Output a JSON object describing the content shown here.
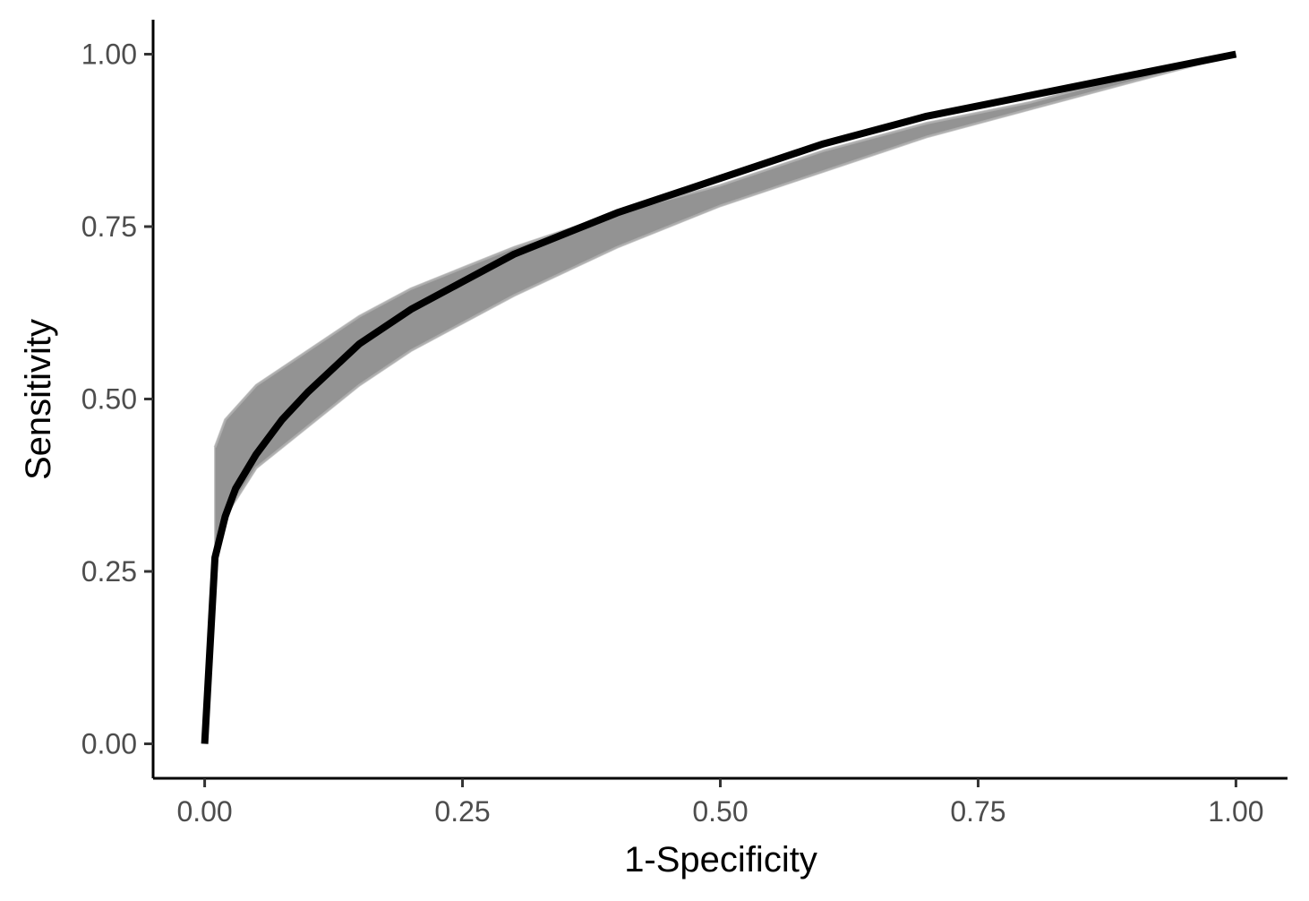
{
  "chart_data": {
    "type": "line",
    "title": "",
    "xlabel": "1-Specificity",
    "ylabel": "Sensitivity",
    "xlim": [
      -0.05,
      1.05
    ],
    "ylim": [
      -0.05,
      1.05
    ],
    "xticks": [
      0.0,
      0.25,
      0.5,
      0.75,
      1.0
    ],
    "yticks": [
      0.0,
      0.25,
      0.5,
      0.75,
      1.0
    ],
    "xtick_labels": [
      "0.00",
      "0.25",
      "0.50",
      "0.75",
      "1.00"
    ],
    "ytick_labels": [
      "0.00",
      "0.25",
      "0.50",
      "0.75",
      "1.00"
    ],
    "grid": false,
    "legend": "none",
    "series": [
      {
        "role": "band-upper",
        "color": "#808080",
        "x": [
          0.01,
          0.02,
          0.05,
          0.1,
          0.15,
          0.2,
          0.25,
          0.3,
          0.4,
          0.5,
          0.6,
          0.7,
          0.8,
          0.9,
          1.0
        ],
        "y": [
          0.43,
          0.47,
          0.52,
          0.57,
          0.62,
          0.66,
          0.69,
          0.72,
          0.77,
          0.81,
          0.86,
          0.9,
          0.93,
          0.97,
          1.0
        ]
      },
      {
        "role": "band-lower",
        "color": "#808080",
        "x": [
          0.01,
          0.02,
          0.05,
          0.1,
          0.15,
          0.2,
          0.25,
          0.3,
          0.4,
          0.5,
          0.6,
          0.7,
          0.8,
          0.9,
          1.0
        ],
        "y": [
          0.26,
          0.33,
          0.4,
          0.46,
          0.52,
          0.57,
          0.61,
          0.65,
          0.72,
          0.78,
          0.83,
          0.88,
          0.92,
          0.96,
          1.0
        ]
      },
      {
        "role": "main",
        "color": "#000000",
        "x": [
          0.0,
          0.01,
          0.02,
          0.03,
          0.05,
          0.075,
          0.1,
          0.15,
          0.2,
          0.25,
          0.3,
          0.4,
          0.5,
          0.6,
          0.7,
          0.8,
          0.9,
          1.0
        ],
        "y": [
          0.0,
          0.27,
          0.33,
          0.37,
          0.42,
          0.47,
          0.51,
          0.58,
          0.63,
          0.67,
          0.71,
          0.77,
          0.82,
          0.87,
          0.91,
          0.94,
          0.97,
          1.0
        ]
      }
    ]
  }
}
